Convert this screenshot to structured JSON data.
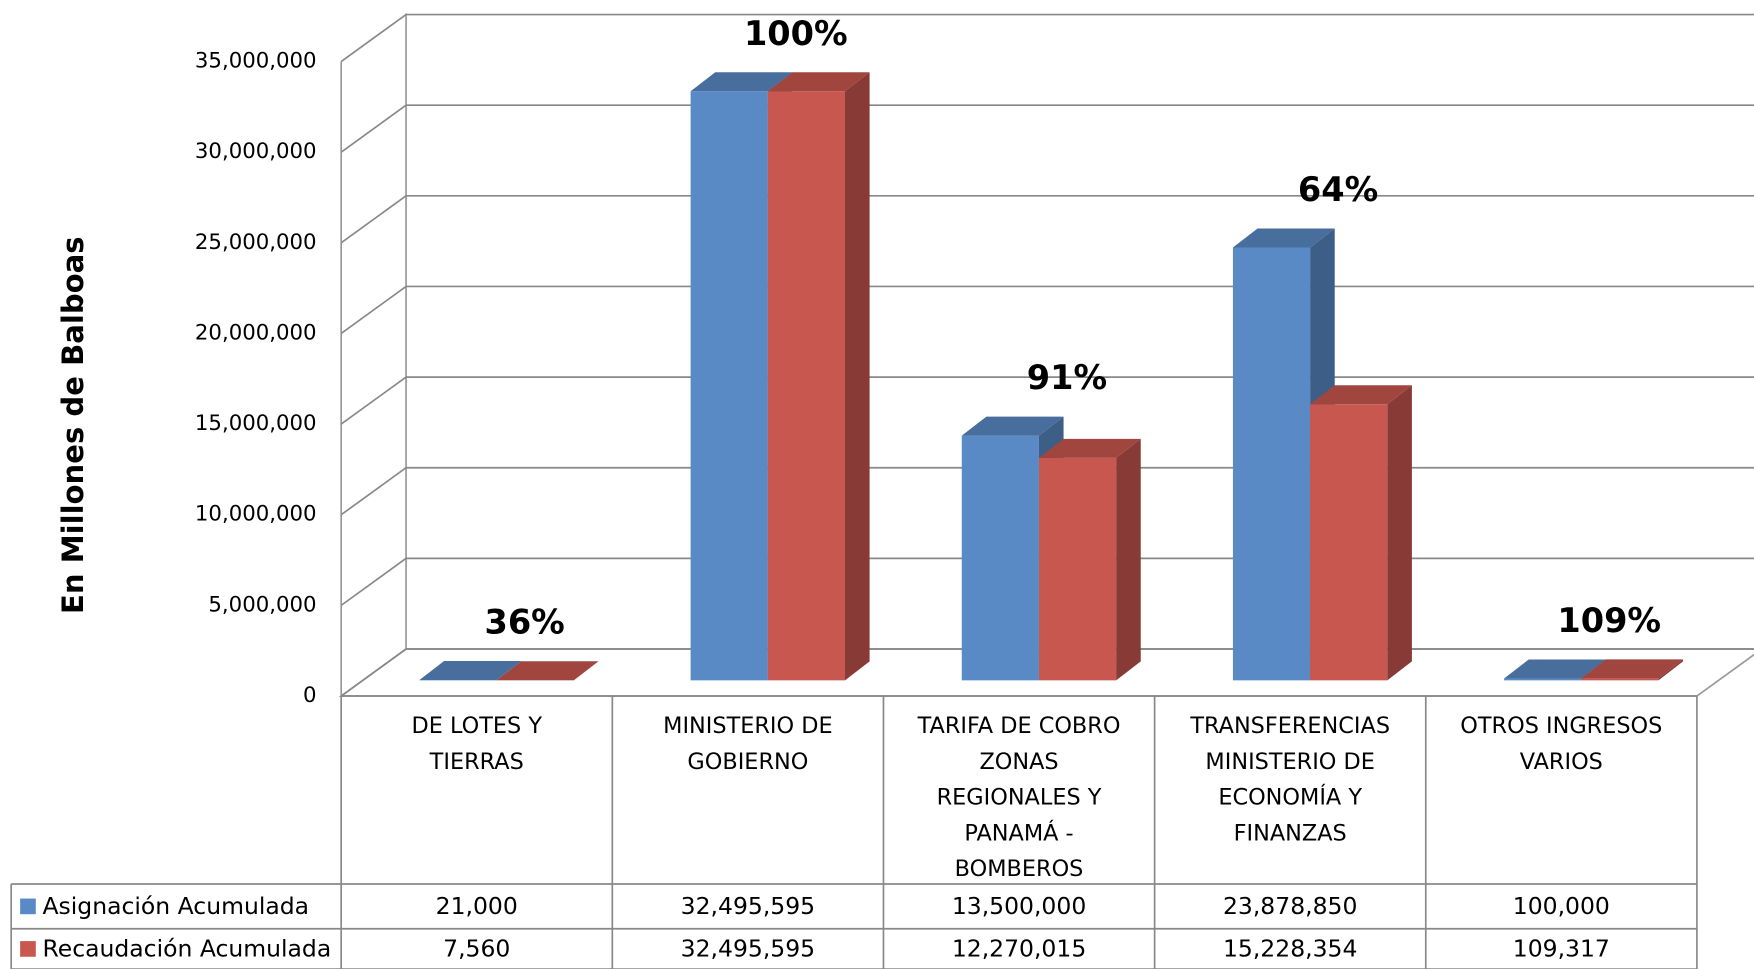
{
  "chart_data": {
    "type": "bar3d",
    "y_axis_label": "En Millones de Balboas",
    "categories": [
      "DE LOTES Y TIERRAS",
      "MINISTERIO DE GOBIERNO",
      "TARIFA DE COBRO ZONAS REGIONALES Y PANAMÁ - BOMBEROS",
      "TRANSFERENCIAS MINISTERIO DE ECONOMÍA Y FINANZAS",
      "OTROS INGRESOS VARIOS"
    ],
    "series": [
      {
        "name": "Asignación Acumulada",
        "color": "#5a8ac6",
        "values": [
          21000,
          32495595,
          13500000,
          23878850,
          100000
        ],
        "value_labels": [
          "21,000",
          "32,495,595",
          "13,500,000",
          "23,878,850",
          "100,000"
        ]
      },
      {
        "name": "Recaudación Acumulada",
        "color": "#c8574f",
        "values": [
          7560,
          32495595,
          12270015,
          15228354,
          109317
        ],
        "value_labels": [
          "7,560",
          "32,495,595",
          "12,270,015",
          "15,228,354",
          "109,317"
        ]
      }
    ],
    "percentages": {
      "values": [
        36,
        100,
        91,
        64,
        109
      ],
      "value_labels": [
        "36%",
        "100%",
        "91%",
        "64%",
        "109%"
      ]
    },
    "ylim": [
      0,
      35000000
    ],
    "yticks": [
      0,
      {
        "value": 5000000,
        "label": "5,000,000"
      },
      {
        "value": 10000000,
        "label": "10,000,000"
      },
      {
        "value": 15000000,
        "label": "15,000,000"
      },
      {
        "value": 20000000,
        "label": "20,000,000"
      },
      {
        "value": 25000000,
        "label": "25,000,000"
      },
      {
        "value": 30000000,
        "label": "30,000,000"
      },
      {
        "value": 35000000,
        "label": "35,000,000"
      }
    ],
    "grid": true,
    "data_table": true
  }
}
